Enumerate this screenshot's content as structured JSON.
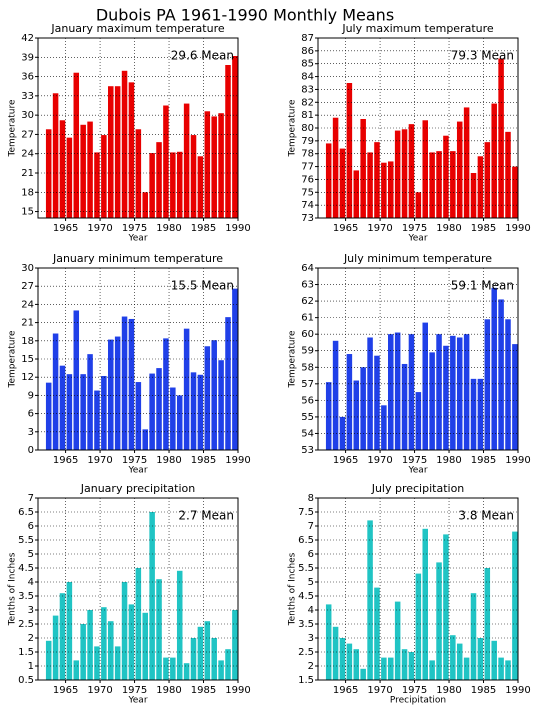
{
  "title": "Dubois PA  1961-1990 Monthly Means",
  "chart_data": [
    {
      "type": "bar",
      "title": "January maximum temperature",
      "annotation": "29.6 Mean",
      "xlabel": "Year",
      "ylabel": "Temperature",
      "color": "#e80000",
      "x": [
        1963,
        1964,
        1965,
        1966,
        1967,
        1968,
        1969,
        1970,
        1971,
        1972,
        1973,
        1974,
        1975,
        1976,
        1977,
        1978,
        1979,
        1980,
        1981,
        1982,
        1983,
        1984,
        1985,
        1986,
        1987,
        1988,
        1989,
        1990
      ],
      "values": [
        27.8,
        33.4,
        29.2,
        26.5,
        36.6,
        28.5,
        29.0,
        24.2,
        26.9,
        34.5,
        34.5,
        36.9,
        35.1,
        27.8,
        18.0,
        24.1,
        25.8,
        31.5,
        24.2,
        24.3,
        31.8,
        26.9,
        23.6,
        30.6,
        29.8,
        30.3,
        37.8,
        39.2
      ],
      "xlim": [
        1961,
        1990
      ],
      "xticks": [
        1965,
        1970,
        1975,
        1980,
        1985,
        1990
      ],
      "ylim": [
        14,
        42
      ],
      "yticks": [
        15,
        18,
        21,
        24,
        27,
        30,
        33,
        36,
        39,
        42
      ],
      "grid": true
    },
    {
      "type": "bar",
      "title": "July maximum temperature",
      "annotation": "79.3 Mean",
      "xlabel": "Year",
      "ylabel": "Temperature",
      "color": "#e80000",
      "x": [
        1963,
        1964,
        1965,
        1966,
        1967,
        1968,
        1969,
        1970,
        1971,
        1972,
        1973,
        1974,
        1975,
        1976,
        1977,
        1978,
        1979,
        1980,
        1981,
        1982,
        1983,
        1984,
        1985,
        1986,
        1987,
        1988,
        1989,
        1990
      ],
      "values": [
        78.8,
        80.8,
        78.4,
        83.5,
        76.7,
        80.7,
        78.1,
        78.9,
        77.3,
        77.4,
        79.8,
        79.9,
        80.3,
        75.0,
        80.6,
        78.1,
        78.2,
        79.4,
        78.2,
        80.5,
        81.6,
        76.5,
        77.8,
        78.9,
        81.9,
        85.4,
        79.7,
        77.0
      ],
      "xlim": [
        1961,
        1990
      ],
      "xticks": [
        1965,
        1970,
        1975,
        1980,
        1985,
        1990
      ],
      "ylim": [
        73,
        87
      ],
      "yticks": [
        73,
        74,
        75,
        76,
        77,
        78,
        79,
        80,
        81,
        82,
        83,
        84,
        85,
        86,
        87
      ],
      "grid": true
    },
    {
      "type": "bar",
      "title": "January minimum temperature",
      "annotation": "15.5 Mean",
      "xlabel": "Year",
      "ylabel": "Temperature",
      "color": "#2040e8",
      "x": [
        1963,
        1964,
        1965,
        1966,
        1967,
        1968,
        1969,
        1970,
        1971,
        1972,
        1973,
        1974,
        1975,
        1976,
        1977,
        1978,
        1979,
        1980,
        1981,
        1982,
        1983,
        1984,
        1985,
        1986,
        1987,
        1988,
        1989,
        1990
      ],
      "values": [
        11.1,
        19.2,
        13.9,
        12.5,
        23.0,
        12.5,
        15.8,
        9.8,
        12.2,
        18.2,
        18.7,
        22.0,
        21.6,
        11.2,
        3.4,
        12.6,
        13.5,
        18.4,
        10.3,
        9.0,
        20.0,
        12.8,
        12.4,
        17.1,
        18.1,
        14.8,
        21.9,
        26.6
      ],
      "xlim": [
        1961,
        1990
      ],
      "xticks": [
        1965,
        1970,
        1975,
        1980,
        1985,
        1990
      ],
      "ylim": [
        0,
        30
      ],
      "yticks": [
        0,
        3,
        6,
        9,
        12,
        15,
        18,
        21,
        24,
        27,
        30
      ],
      "grid": true
    },
    {
      "type": "bar",
      "title": "July minimum temperature",
      "annotation": "59.1 Mean",
      "xlabel": "Year",
      "ylabel": "Temperature",
      "color": "#2040e8",
      "x": [
        1963,
        1964,
        1965,
        1966,
        1967,
        1968,
        1969,
        1970,
        1971,
        1972,
        1973,
        1974,
        1975,
        1976,
        1977,
        1978,
        1979,
        1980,
        1981,
        1982,
        1983,
        1984,
        1985,
        1986,
        1987,
        1988,
        1989,
        1990
      ],
      "values": [
        57.1,
        59.6,
        55.0,
        58.8,
        57.2,
        58.0,
        59.8,
        58.7,
        55.7,
        60.0,
        60.1,
        58.2,
        60.0,
        56.5,
        60.7,
        58.9,
        60.0,
        59.3,
        59.9,
        59.8,
        60.0,
        57.3,
        57.3,
        60.9,
        62.8,
        62.1,
        60.9,
        59.4
      ],
      "xlim": [
        1961,
        1990
      ],
      "xticks": [
        1965,
        1970,
        1975,
        1980,
        1985,
        1990
      ],
      "ylim": [
        53,
        64
      ],
      "yticks": [
        53,
        54,
        55,
        56,
        57,
        58,
        59,
        60,
        61,
        62,
        63,
        64
      ],
      "grid": true
    },
    {
      "type": "bar",
      "title": "January precipitation",
      "annotation": "2.7 Mean",
      "xlabel": "Year",
      "ylabel": "Tenths of Inches",
      "color": "#20c4c4",
      "x": [
        1963,
        1964,
        1965,
        1966,
        1967,
        1968,
        1969,
        1970,
        1971,
        1972,
        1973,
        1974,
        1975,
        1976,
        1977,
        1978,
        1979,
        1980,
        1981,
        1982,
        1983,
        1984,
        1985,
        1986,
        1987,
        1988,
        1989,
        1990
      ],
      "values": [
        1.9,
        2.8,
        3.6,
        4.0,
        1.2,
        2.5,
        3.0,
        1.7,
        3.1,
        2.6,
        1.7,
        4.0,
        3.2,
        4.5,
        2.9,
        6.5,
        4.1,
        1.3,
        1.3,
        4.4,
        1.1,
        2.0,
        2.4,
        2.6,
        2.0,
        1.2,
        1.6,
        3.0
      ],
      "xlim": [
        1961,
        1990
      ],
      "xticks": [
        1965,
        1970,
        1975,
        1980,
        1985,
        1990
      ],
      "ylim": [
        0.5,
        7
      ],
      "yticks": [
        0.5,
        1,
        1.5,
        2,
        2.5,
        3,
        3.5,
        4,
        4.5,
        5,
        5.5,
        6,
        6.5,
        7
      ],
      "grid": true
    },
    {
      "type": "bar",
      "title": "July precipitation",
      "annotation": "3.8 Mean",
      "xlabel": "Precipitation",
      "ylabel": "Tenths of Inches",
      "color": "#20c4c4",
      "x": [
        1963,
        1964,
        1965,
        1966,
        1967,
        1968,
        1969,
        1970,
        1971,
        1972,
        1973,
        1974,
        1975,
        1976,
        1977,
        1978,
        1979,
        1980,
        1981,
        1982,
        1983,
        1984,
        1985,
        1986,
        1987,
        1988,
        1989,
        1990
      ],
      "values": [
        4.2,
        3.4,
        3.0,
        2.8,
        2.6,
        1.9,
        7.2,
        4.8,
        2.3,
        2.3,
        4.3,
        2.6,
        2.5,
        5.3,
        6.9,
        2.2,
        5.7,
        6.7,
        3.1,
        2.8,
        2.3,
        4.6,
        3.0,
        5.5,
        2.9,
        2.3,
        2.2,
        6.8
      ],
      "xlim": [
        1961,
        1990
      ],
      "xticks": [
        1965,
        1970,
        1975,
        1980,
        1985,
        1990
      ],
      "ylim": [
        1.5,
        8
      ],
      "yticks": [
        1.5,
        2,
        2.5,
        3,
        3.5,
        4,
        4.5,
        5,
        5.5,
        6,
        6.5,
        7,
        7.5,
        8
      ],
      "grid": true
    }
  ]
}
